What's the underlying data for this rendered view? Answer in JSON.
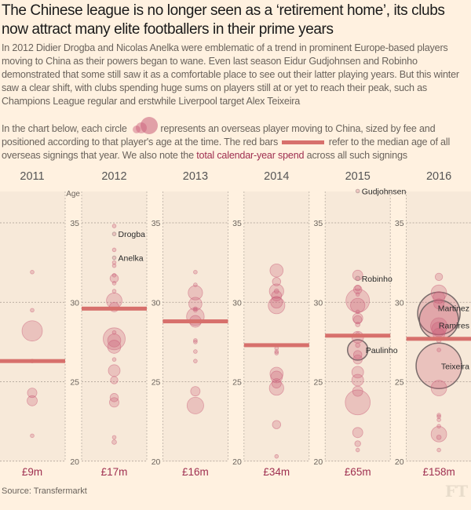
{
  "title": "The Chinese league is no longer seen as a ‘retirement home’, its clubs now attract many elite footballers in their prime years",
  "intro": "In 2012 Didier Drogba and Nicolas Anelka were emblematic of a trend in prominent Europe-based players moving to China as their powers began to wane. Even last season Eidur Gudjohnsen and Robinho demonstrated that some still saw it as a comfortable place to see out their latter playing years. But this winter saw a clear shift, with clubs spending huge sums on players still at or yet to reach their peak, such as Champions League regular and erstwhile Liverpool target Alex Teixeira",
  "legend": {
    "part1": "In the chart below, each circle",
    "part2": "represents an overseas player moving to China, sized by fee and positioned according to that player's age at the time. The red bars",
    "part3": "refer to the median age of all overseas signings that year. We also note the",
    "spend_link": "total calendar-year spend",
    "part4": "across all such signings"
  },
  "source": "Source: Transfermarkt",
  "logo": "FT",
  "colors": {
    "background": "#fff1e0",
    "panel": "#f7e9d9",
    "bubble": "#c95c78",
    "median": "#d7706c",
    "spend": "#9e2f50",
    "highlight_outline": "#6b6060"
  },
  "chart_data": {
    "type": "scatter",
    "ylabel": "Age",
    "ylim": [
      20,
      37
    ],
    "yticks": [
      20,
      25,
      30,
      35
    ],
    "grid": true,
    "size_encoding": "fee (£m), estimated",
    "panels": [
      {
        "year": "2011",
        "spend": "£9m",
        "median_age": 26.3,
        "players": [
          [
            31.9,
            0.2
          ],
          [
            29.5,
            0.2
          ],
          [
            28.2,
            6
          ],
          [
            26.3,
            0.2
          ],
          [
            24.3,
            1.3
          ],
          [
            23.8,
            1.5
          ],
          [
            21.6,
            0.2
          ]
        ]
      },
      {
        "year": "2012",
        "spend": "£17m",
        "median_age": 29.6,
        "players": [
          [
            34.8,
            0.2
          ],
          [
            34.3,
            0.2,
            "Drogba"
          ],
          [
            33.3,
            0.2
          ],
          [
            32.8,
            0.2,
            "Anelka"
          ],
          [
            32.5,
            0.2
          ],
          [
            32.3,
            0.2
          ],
          [
            31.7,
            0.2
          ],
          [
            31.5,
            1
          ],
          [
            31.2,
            0.2
          ],
          [
            30.7,
            0.2
          ],
          [
            30.1,
            3.5
          ],
          [
            29.7,
            1.3
          ],
          [
            28.1,
            0.2
          ],
          [
            27.7,
            7
          ],
          [
            27.6,
            2.5
          ],
          [
            27.2,
            2.5
          ],
          [
            26.4,
            0.2
          ],
          [
            25.7,
            2
          ],
          [
            25.1,
            0.8
          ],
          [
            24,
            1
          ],
          [
            23.7,
            1.3
          ],
          [
            21.5,
            0.2
          ],
          [
            21.2,
            0.3
          ]
        ]
      },
      {
        "year": "2013",
        "spend": "£16m",
        "median_age": 28.8,
        "players": [
          [
            31.9,
            0.2
          ],
          [
            31.1,
            0.2
          ],
          [
            30.6,
            3
          ],
          [
            29.9,
            2.5
          ],
          [
            29.6,
            0.2
          ],
          [
            29.5,
            0.2
          ],
          [
            29.1,
            4.5
          ],
          [
            28.8,
            2
          ],
          [
            27.6,
            0.2
          ],
          [
            27.5,
            0.2
          ],
          [
            26.9,
            0.2
          ],
          [
            26.3,
            0.2
          ],
          [
            24.4,
            1.3
          ],
          [
            23.5,
            4
          ]
        ]
      },
      {
        "year": "2014",
        "spend": "£34m",
        "median_age": 27.3,
        "players": [
          [
            32,
            2.5
          ],
          [
            31.3,
            1
          ],
          [
            30.7,
            3
          ],
          [
            30.7,
            0.3
          ],
          [
            30.4,
            1.5
          ],
          [
            30,
            2
          ],
          [
            29.8,
            4
          ],
          [
            27.1,
            0.2
          ],
          [
            26.9,
            0.2
          ],
          [
            26.8,
            0.2
          ],
          [
            25.5,
            2.5
          ],
          [
            25.3,
            2
          ],
          [
            24.9,
            1.3
          ],
          [
            24.6,
            3
          ],
          [
            22.3,
            1
          ],
          [
            20.3,
            0.2
          ]
        ]
      },
      {
        "year": "2015",
        "spend": "£65m",
        "median_age": 27.9,
        "players": [
          [
            37,
            0.2,
            "Gudjohnsen"
          ],
          [
            31.7,
            1.5
          ],
          [
            31.5,
            0.3,
            "Robinho"
          ],
          [
            30.9,
            0.5
          ],
          [
            30.8,
            1
          ],
          [
            30.5,
            0.2
          ],
          [
            30.1,
            8
          ],
          [
            29.8,
            3
          ],
          [
            29.4,
            0.2
          ],
          [
            29,
            1.5
          ],
          [
            28.9,
            1
          ],
          [
            28.6,
            0.3
          ],
          [
            28,
            0.2
          ],
          [
            27.8,
            2
          ],
          [
            27.3,
            0.3
          ],
          [
            27,
            6,
            "Paulinho"
          ],
          [
            26.7,
            1
          ],
          [
            26.4,
            1.2
          ],
          [
            25.6,
            2
          ],
          [
            25.1,
            2
          ],
          [
            24.4,
            1.5
          ],
          [
            23.7,
            9
          ],
          [
            21.8,
            1.5
          ],
          [
            21.1,
            0.5
          ],
          [
            20.7,
            0.2
          ]
        ]
      },
      {
        "year": "2016",
        "spend": "£158m",
        "median_age": 27.7,
        "players": [
          [
            31.6,
            0.8
          ],
          [
            30.6,
            3.5
          ],
          [
            30.3,
            2
          ],
          [
            29.9,
            1.5
          ],
          [
            29.3,
            26,
            "Martinez"
          ],
          [
            28.9,
            22,
            "Ramires"
          ],
          [
            28.5,
            4
          ],
          [
            28.3,
            3
          ],
          [
            28,
            2
          ],
          [
            27.6,
            0.3
          ],
          [
            27,
            0.2
          ],
          [
            26,
            30,
            "Teixeira"
          ],
          [
            24.6,
            3.5
          ],
          [
            22.9,
            0.2
          ],
          [
            22.8,
            0.2
          ],
          [
            22.6,
            0.2
          ],
          [
            22.2,
            0.2
          ],
          [
            21.7,
            3.5
          ],
          [
            21.5,
            0.3
          ],
          [
            20.7,
            0.2
          ]
        ]
      }
    ]
  }
}
